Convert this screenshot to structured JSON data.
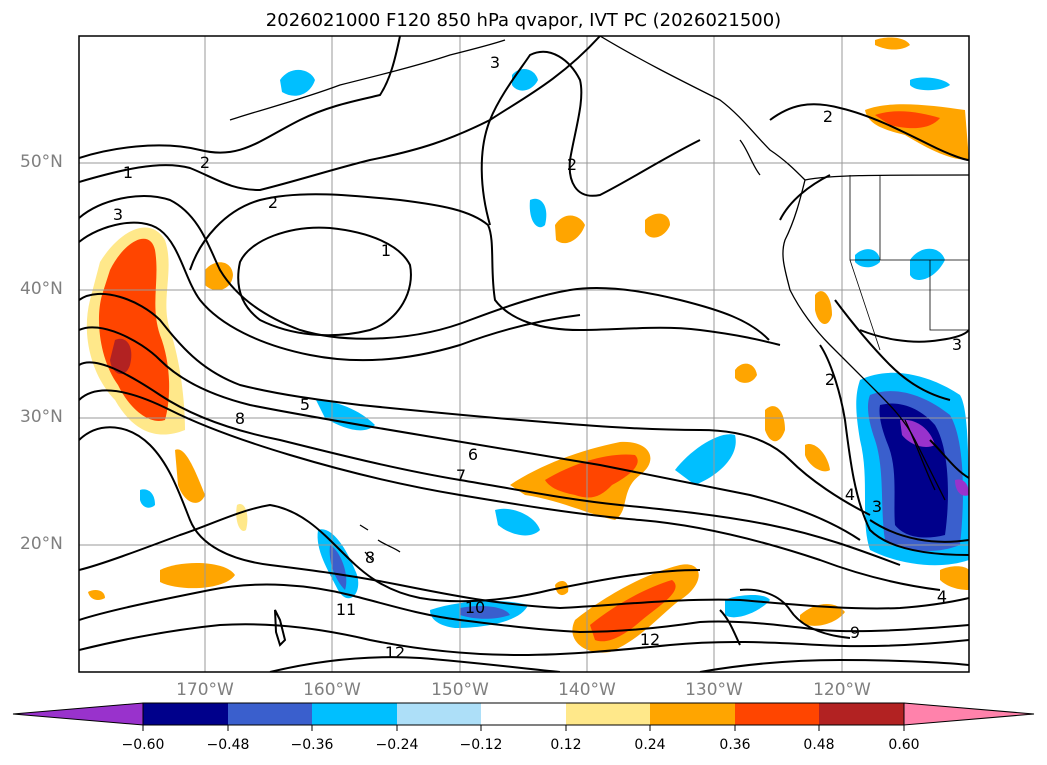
{
  "title": "2026021000 F120 850 hPa qvapor, IVT PC (2026021500)",
  "lat_labels": [
    {
      "label": "50°N"
    },
    {
      "label": "40°N"
    },
    {
      "label": "30°N"
    },
    {
      "label": "20°N"
    }
  ],
  "lon_labels": [
    {
      "label": "170°W"
    },
    {
      "label": "160°W"
    },
    {
      "label": "150°W"
    },
    {
      "label": "140°W"
    },
    {
      "label": "130°W"
    },
    {
      "label": "120°W"
    }
  ],
  "colorbar": {
    "ticks": [
      "−0.60",
      "−0.48",
      "−0.36",
      "−0.24",
      "−0.12",
      "0.12",
      "0.24",
      "0.36",
      "0.48",
      "0.60"
    ],
    "colors": [
      "#9932CC",
      "#00008B",
      "#3A5FCD",
      "#00BFFF",
      "#ADDFF8",
      "#FFFFFF",
      "#FFE88A",
      "#FFA500",
      "#FF4500",
      "#B22222",
      "#FF82AB"
    ]
  },
  "contour_labels": [
    "1",
    "2",
    "3",
    "2",
    "2",
    "1",
    "3",
    "2",
    "5",
    "6",
    "7",
    "8",
    "10",
    "11",
    "12",
    "12",
    "9",
    "4",
    "3",
    "2",
    "3",
    "4",
    "8"
  ]
}
